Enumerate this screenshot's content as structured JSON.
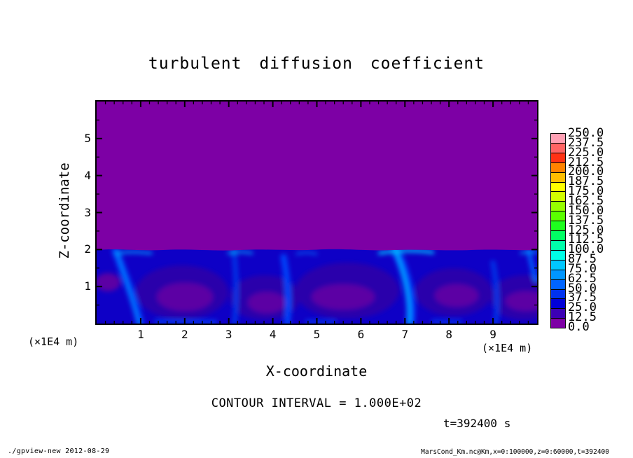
{
  "title": "turbulent diffusion coefficient",
  "axes": {
    "x": {
      "label": "X-coordinate",
      "units": "(×1E4 m)",
      "tick_labels": [
        "1",
        "2",
        "3",
        "4",
        "5",
        "6",
        "7",
        "8",
        "9"
      ]
    },
    "z": {
      "label": "Z-coordinate",
      "units": "(×1E4 m)",
      "tick_labels": [
        "1",
        "2",
        "3",
        "4",
        "5"
      ]
    }
  },
  "annotations": {
    "contour_interval": "CONTOUR INTERVAL = 1.000E+02",
    "time": "t=392400 s"
  },
  "footer": {
    "left": "./gpview-new  2012-08-29",
    "right": "MarsCond_Km.nc@Km,x=0:100000,z=0:60000,t=392400"
  },
  "colorbar": {
    "labels_top_to_bottom": [
      "250.0",
      "237.5",
      "225.0",
      "212.5",
      "200.0",
      "187.5",
      "175.0",
      "162.5",
      "150.0",
      "137.5",
      "125.0",
      "112.5",
      "100.0",
      "87.5",
      "75.0",
      "62.5",
      "50.0",
      "37.5",
      "25.0",
      "12.5",
      "0.0"
    ],
    "colors_low_to_high": [
      "#7D00A5",
      "#3C00B4",
      "#0000D7",
      "#0032F0",
      "#0064FF",
      "#0096FF",
      "#00C8FF",
      "#00FFE6",
      "#00FFAA",
      "#00FF64",
      "#1EFF1E",
      "#5AFF00",
      "#96FF00",
      "#D2FF00",
      "#FFFF00",
      "#FFBE00",
      "#FF8200",
      "#FF3214",
      "#FF6464",
      "#FFA0B4"
    ]
  },
  "chart_data": {
    "type": "heatmap",
    "title": "turbulent diffusion coefficient",
    "xlabel": "X-coordinate",
    "ylabel": "Z-coordinate",
    "x_units_note": "(×1E4 m)",
    "y_units_note": "(×1E4 m)",
    "xlim": [
      0,
      10
    ],
    "ylim": [
      0,
      6
    ],
    "x_ticks": [
      1,
      2,
      3,
      4,
      5,
      6,
      7,
      8,
      9
    ],
    "x_minor_step": 0.2,
    "y_ticks": [
      1,
      2,
      3,
      4,
      5
    ],
    "y_minor_step": 0.5,
    "value_levels": [
      0,
      12.5,
      25,
      37.5,
      50,
      62.5,
      75,
      87.5,
      100,
      112.5,
      125,
      137.5,
      150,
      162.5,
      175,
      187.5,
      200,
      212.5,
      225,
      237.5,
      250
    ],
    "palette_low_to_high": [
      "#7D00A5",
      "#3C00B4",
      "#0000D7",
      "#0032F0",
      "#0064FF",
      "#0096FF",
      "#00C8FF",
      "#00FFE6",
      "#00FFAA",
      "#00FF64",
      "#1EFF1E",
      "#5AFF00",
      "#96FF00",
      "#D2FF00",
      "#FFFF00",
      "#FFBE00",
      "#FF8200",
      "#FF3214",
      "#FF6464",
      "#FFA0B4"
    ],
    "contour_interval": 100.0,
    "time_seconds": 392400,
    "grid": false,
    "legend_position": "right-colorbar",
    "field_description": {
      "upper_layer": {
        "z_range_e4m": [
          2,
          6
        ],
        "value_bin": "0.0–12.5 (near zero)",
        "fill_color": "#7D00A5"
      },
      "lower_layer": {
        "z_range_e4m": [
          0,
          2
        ],
        "value_bins": "mostly 12.5–75, turbulent convective cells on dark-blue background"
      },
      "updraft_plume_x_positions_e4m": [
        1.0,
        3.1,
        4.3,
        7.1,
        9.1,
        9.9
      ],
      "cell_core_x_positions_e4m": [
        1.9,
        3.8,
        5.6,
        8.1,
        9.7
      ],
      "boundary_height_e4m": 2.0
    }
  }
}
